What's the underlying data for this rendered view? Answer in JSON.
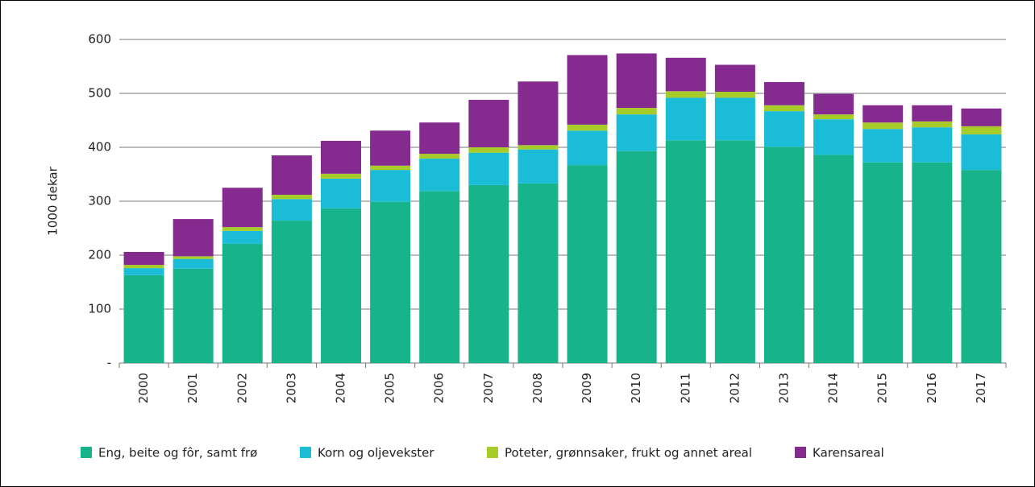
{
  "chart_data": {
    "type": "stacked_bar",
    "y_label": "1000 dekar",
    "categories": [
      "2000",
      "2001",
      "2002",
      "2003",
      "2004",
      "2005",
      "2006",
      "2007",
      "2008",
      "2009",
      "2010",
      "2011",
      "2012",
      "2013",
      "2014",
      "2015",
      "2016",
      "2017"
    ],
    "series": [
      {
        "name": "Eng, beite og fôr, samt frø",
        "color": "#17b38a",
        "values": [
          163,
          175,
          221,
          264,
          287,
          299,
          319,
          330,
          333,
          367,
          393,
          413,
          413,
          401,
          386,
          372,
          372,
          358
        ]
      },
      {
        "name": "Korn og oljevekster",
        "color": "#1bbcd8",
        "values": [
          13,
          18,
          24,
          40,
          55,
          59,
          60,
          60,
          63,
          64,
          68,
          79,
          79,
          66,
          66,
          62,
          65,
          66
        ]
      },
      {
        "name": "Poteter, grønnsaker, frukt og annet areal",
        "color": "#a7cc2a",
        "values": [
          6,
          5,
          7,
          8,
          9,
          8,
          9,
          10,
          8,
          11,
          12,
          12,
          11,
          11,
          9,
          12,
          11,
          15
        ]
      },
      {
        "name": "Karensareal",
        "color": "#852a8e",
        "values": [
          24,
          69,
          73,
          73,
          61,
          65,
          58,
          88,
          118,
          129,
          101,
          62,
          50,
          43,
          38,
          32,
          30,
          33
        ]
      }
    ],
    "ylim": [
      0,
      600
    ],
    "yticks": [
      {
        "value": 0,
        "label": "-"
      },
      100,
      200,
      300,
      400,
      500,
      600
    ],
    "grid": true
  }
}
